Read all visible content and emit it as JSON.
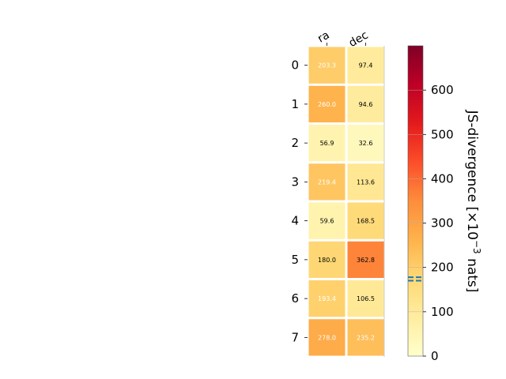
{
  "chart_data": {
    "type": "heatmap",
    "x_categories": [
      "ra",
      "dec"
    ],
    "y_categories": [
      "0",
      "1",
      "2",
      "3",
      "4",
      "5",
      "6",
      "7"
    ],
    "values": [
      [
        203.3,
        97.4
      ],
      [
        260.0,
        94.6
      ],
      [
        56.9,
        32.6
      ],
      [
        219.4,
        113.6
      ],
      [
        59.6,
        168.5
      ],
      [
        180.0,
        362.8
      ],
      [
        193.4,
        106.5
      ],
      [
        278.0,
        235.2
      ]
    ],
    "cell_labels": [
      [
        "203.3",
        "97.4"
      ],
      [
        "260.0",
        "94.6"
      ],
      [
        "56.9",
        "32.6"
      ],
      [
        "219.4",
        "113.6"
      ],
      [
        "59.6",
        "168.5"
      ],
      [
        "180.0",
        "362.8"
      ],
      [
        "193.4",
        "106.5"
      ],
      [
        "278.0",
        "235.2"
      ]
    ],
    "colorbar": {
      "label_prefix": "JS-divergence [×10",
      "label_exponent": "−3",
      "label_suffix": " nats]",
      "range": [
        0,
        700
      ],
      "ticks": [
        "0",
        "100",
        "200",
        "300",
        "400",
        "500",
        "600"
      ],
      "colormap": "YlOrRd",
      "markers": [
        170,
        178
      ]
    },
    "colors": {
      "marker": "#1f77b4",
      "label_light": "#ffffff",
      "label_dark": "#000000"
    }
  }
}
